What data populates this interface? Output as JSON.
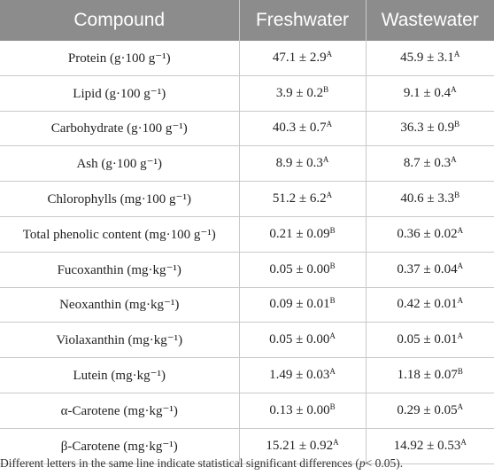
{
  "table": {
    "headers": [
      "Compound",
      "Freshwater",
      "Wastewater"
    ],
    "rows": [
      {
        "compound": "Protein (g·100 g⁻¹)",
        "fresh_value": "47.1 ± 2.9",
        "fresh_sup": "A",
        "waste_value": "45.9 ± 3.1",
        "waste_sup": "A"
      },
      {
        "compound": "Lipid (g·100 g⁻¹)",
        "fresh_value": "3.9 ± 0.2",
        "fresh_sup": "B",
        "waste_value": "9.1 ± 0.4",
        "waste_sup": "A"
      },
      {
        "compound": "Carbohydrate (g·100 g⁻¹)",
        "fresh_value": "40.3 ± 0.7",
        "fresh_sup": "A",
        "waste_value": "36.3 ± 0.9",
        "waste_sup": "B"
      },
      {
        "compound": "Ash (g·100 g⁻¹)",
        "fresh_value": "8.9 ± 0.3",
        "fresh_sup": "A",
        "waste_value": "8.7 ± 0.3",
        "waste_sup": "A"
      },
      {
        "compound": "Chlorophylls (mg·100 g⁻¹)",
        "fresh_value": "51.2 ± 6.2",
        "fresh_sup": "A",
        "waste_value": "40.6 ± 3.3",
        "waste_sup": "B"
      },
      {
        "compound": "Total phenolic content (mg·100 g⁻¹)",
        "fresh_value": "0.21 ± 0.09",
        "fresh_sup": "B",
        "waste_value": "0.36 ± 0.02",
        "waste_sup": "A"
      },
      {
        "compound": "Fucoxanthin (mg·kg⁻¹)",
        "fresh_value": "0.05 ± 0.00",
        "fresh_sup": "B",
        "waste_value": "0.37 ± 0.04",
        "waste_sup": "A"
      },
      {
        "compound": "Neoxanthin (mg·kg⁻¹)",
        "fresh_value": "0.09 ± 0.01",
        "fresh_sup": "B",
        "waste_value": "0.42 ± 0.01",
        "waste_sup": "A"
      },
      {
        "compound": "Violaxanthin (mg·kg⁻¹)",
        "fresh_value": "0.05 ± 0.00",
        "fresh_sup": "A",
        "waste_value": "0.05 ± 0.01",
        "waste_sup": "A"
      },
      {
        "compound": "Lutein (mg·kg⁻¹)",
        "fresh_value": "1.49 ± 0.03",
        "fresh_sup": "A",
        "waste_value": "1.18 ± 0.07",
        "waste_sup": "B"
      },
      {
        "compound": "α-Carotene (mg·kg⁻¹)",
        "fresh_value": "0.13 ± 0.00",
        "fresh_sup": "B",
        "waste_value": "0.29 ± 0.05",
        "waste_sup": "A"
      },
      {
        "compound": "β-Carotene (mg·kg⁻¹)",
        "fresh_value": "15.21 ± 0.92",
        "fresh_sup": "A",
        "waste_value": "14.92 ± 0.53",
        "waste_sup": "A"
      }
    ]
  },
  "footnote": {
    "before": "Different letters in the same line indicate statistical significant differences (",
    "italic": "p",
    "after": "< 0.05)."
  },
  "colors": {
    "header_bg": "#8c8c8c",
    "header_text": "#ffffff",
    "rule": "#c9c9c9"
  }
}
